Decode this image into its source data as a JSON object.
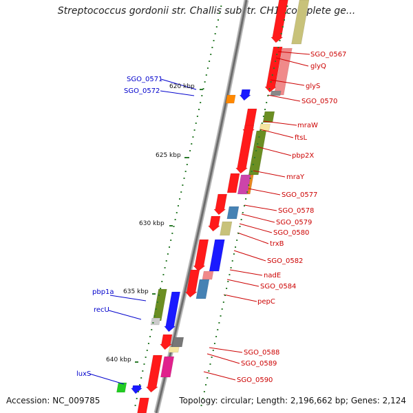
{
  "title": "Streptococcus gordonii str. Challis substr. CH1, complete ge...",
  "accession": "Accession: NC_009785",
  "topology": "Topology: circular; Length: 2,196,662 bp; Genes: 2,124",
  "colors": {
    "forward_gene": "#ff1a1a",
    "reverse_label": "#cc0000",
    "blue_label": "#0000cc",
    "backbone": "#777777",
    "tick": "#2a7a2a"
  },
  "ticks": [
    {
      "label": "620 kbp"
    },
    {
      "label": "625 kbp"
    },
    {
      "label": "630 kbp"
    },
    {
      "label": "635 kbp"
    },
    {
      "label": "640 kbp"
    }
  ],
  "right_labels": [
    "SGO_0567",
    "glyQ",
    "glyS",
    "SGO_0570",
    "mraW",
    "ftsL",
    "pbp2X",
    "mraY",
    "SGO_0577",
    "SGO_0578",
    "SGO_0579",
    "SGO_0580",
    "trxB",
    "SGO_0582",
    "nadE",
    "SGO_0584",
    "pepC",
    "SGO_0588",
    "SGO_0589",
    "SGO_0590"
  ],
  "left_labels": [
    "SGO_0571",
    "SGO_0572",
    "pbp1a",
    "recU",
    "luxS"
  ]
}
